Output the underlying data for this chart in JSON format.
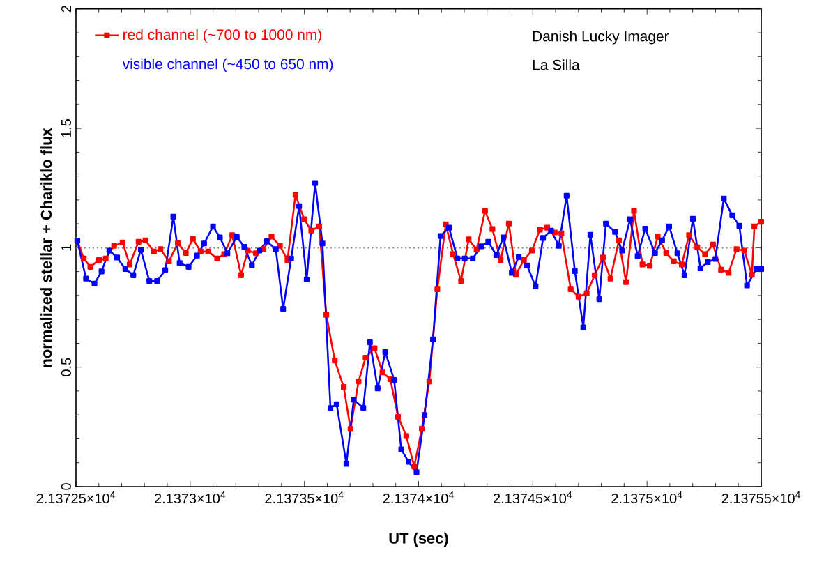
{
  "chart_data": {
    "type": "line",
    "xlabel": "UT (sec)",
    "ylabel": "normalized stellar + Chariklo flux",
    "xlim": [
      21372.5,
      21375.5
    ],
    "ylim": [
      0,
      2
    ],
    "xticks": [
      {
        "value": 21372.5,
        "label": "2.13725×10$^{4}$"
      },
      {
        "value": 21373,
        "label": "2.1373×10$^{4}$"
      },
      {
        "value": 21373.5,
        "label": "2.13735×10$^{4}$"
      },
      {
        "value": 21374,
        "label": "2.1374×10$^{4}$"
      },
      {
        "value": 21374.5,
        "label": "2.13745×10$^{4}$"
      },
      {
        "value": 21375,
        "label": "2.1375×10$^{4}$"
      },
      {
        "value": 21375.5,
        "label": "2.13755×10$^{4}$"
      }
    ],
    "yticks": [
      {
        "value": 0,
        "label": "0"
      },
      {
        "value": 0.5,
        "label": "0.5"
      },
      {
        "value": 1,
        "label": "1"
      },
      {
        "value": 1.5,
        "label": "1.5"
      },
      {
        "value": 2,
        "label": "2"
      }
    ],
    "marker": "square",
    "line_style": "solid",
    "legend": "top left",
    "grid": false,
    "ref_lines": [
      {
        "axis": "y",
        "value": 1,
        "color": "#808080",
        "line_style": "dotted"
      }
    ],
    "annotations": [
      "Danish Lucky Imager",
      "La Silla"
    ],
    "series": [
      {
        "name": "red channel (~700 to 1000 nm)",
        "color": "#ff0000",
        "x": [
          21372.506,
          21372.534,
          21372.563,
          21372.601,
          21372.63,
          21372.667,
          21372.704,
          21372.735,
          21372.774,
          21372.804,
          21372.841,
          21372.87,
          21372.907,
          21372.946,
          21372.981,
          21373.012,
          21373.046,
          21373.079,
          21373.118,
          21373.149,
          21373.184,
          21373.223,
          21373.252,
          21373.288,
          21373.321,
          21373.356,
          21373.393,
          21373.426,
          21373.461,
          21373.499,
          21373.53,
          21373.565,
          21373.596,
          21373.633,
          21373.672,
          21373.702,
          21373.737,
          21373.768,
          21373.807,
          21373.842,
          21373.876,
          21373.91,
          21373.946,
          21373.981,
          21374.014,
          21374.047,
          21374.082,
          21374.119,
          21374.151,
          21374.186,
          21374.219,
          21374.254,
          21374.291,
          21374.323,
          21374.359,
          21374.395,
          21374.426,
          21374.461,
          21374.496,
          21374.531,
          21374.563,
          21374.596,
          21374.625,
          21374.666,
          21374.7,
          21374.736,
          21374.771,
          21374.807,
          21374.84,
          21374.877,
          21374.908,
          21374.943,
          21374.98,
          21375.012,
          21375.047,
          21375.084,
          21375.117,
          21375.152,
          21375.184,
          21375.22,
          21375.254,
          21375.289,
          21375.324,
          21375.357,
          21375.392,
          21375.426,
          21375.459,
          21375.47,
          21375.5
        ],
        "values": [
          1.03,
          0.955,
          0.92,
          0.949,
          0.955,
          1.008,
          1.022,
          0.93,
          1.025,
          1.031,
          0.984,
          0.994,
          0.943,
          1.019,
          0.978,
          1.037,
          0.984,
          0.984,
          0.955,
          0.973,
          1.053,
          0.885,
          0.988,
          0.977,
          0.994,
          1.047,
          1.008,
          0.949,
          1.222,
          1.119,
          1.072,
          1.089,
          0.719,
          0.528,
          0.417,
          0.242,
          0.44,
          0.54,
          0.579,
          0.478,
          0.45,
          0.292,
          0.212,
          0.084,
          0.242,
          0.44,
          0.826,
          1.098,
          0.973,
          0.861,
          1.035,
          0.992,
          1.154,
          1.078,
          0.949,
          1.101,
          0.887,
          0.949,
          0.988,
          1.076,
          1.084,
          1.064,
          1.06,
          0.826,
          0.795,
          0.809,
          0.885,
          0.959,
          0.871,
          1.031,
          0.856,
          1.154,
          0.93,
          0.924,
          1.047,
          0.978,
          0.943,
          0.93,
          1.053,
          1.002,
          0.973,
          1.013,
          0.908,
          0.895,
          0.994,
          0.988,
          0.887,
          1.089,
          1.109
        ]
      },
      {
        "name": "visible channel (~450 to 650 nm)",
        "color": "#0000ff",
        "x": [
          21372.506,
          21372.544,
          21372.581,
          21372.612,
          21372.646,
          21372.68,
          21372.716,
          21372.751,
          21372.784,
          21372.821,
          21372.855,
          21372.891,
          21372.926,
          21372.954,
          21372.993,
          21373.03,
          21373.061,
          21373.1,
          21373.13,
          21373.163,
          21373.204,
          21373.237,
          21373.27,
          21373.303,
          21373.335,
          21373.375,
          21373.407,
          21373.442,
          21373.477,
          21373.51,
          21373.547,
          21373.579,
          21373.614,
          21373.641,
          21373.684,
          21373.716,
          21373.758,
          21373.787,
          21373.821,
          21373.854,
          21373.893,
          21373.924,
          21373.956,
          21373.991,
          21374.026,
          21374.063,
          21374.096,
          21374.133,
          21374.17,
          21374.202,
          21374.237,
          21374.274,
          21374.305,
          21374.34,
          21374.371,
          21374.408,
          21374.438,
          21374.475,
          21374.512,
          21374.545,
          21374.58,
          21374.614,
          21374.648,
          21374.684,
          21374.721,
          21374.752,
          21374.791,
          21374.82,
          21374.86,
          21374.891,
          21374.926,
          21374.959,
          21374.992,
          21375.035,
          21375.066,
          21375.097,
          21375.133,
          21375.164,
          21375.201,
          21375.234,
          21375.266,
          21375.299,
          21375.336,
          21375.373,
          21375.404,
          21375.438,
          21375.478,
          21375.5
        ],
        "values": [
          1.03,
          0.871,
          0.85,
          0.901,
          0.988,
          0.959,
          0.911,
          0.885,
          0.992,
          0.861,
          0.861,
          0.906,
          1.13,
          0.936,
          0.92,
          0.967,
          1.018,
          1.089,
          1.043,
          0.977,
          1.045,
          1.004,
          0.926,
          0.988,
          1.027,
          0.994,
          0.744,
          0.955,
          1.174,
          0.867,
          1.271,
          1.018,
          0.329,
          0.345,
          0.095,
          0.364,
          0.329,
          0.604,
          0.411,
          0.563,
          0.446,
          0.156,
          0.104,
          0.06,
          0.3,
          0.616,
          1.049,
          1.084,
          0.955,
          0.955,
          0.955,
          1.006,
          1.025,
          0.969,
          1.043,
          0.895,
          0.961,
          0.926,
          0.838,
          1.041,
          1.072,
          1.008,
          1.218,
          0.902,
          0.667,
          1.054,
          0.785,
          1.101,
          1.066,
          0.988,
          1.119,
          0.965,
          1.08,
          0.978,
          1.031,
          1.089,
          0.977,
          0.885,
          1.121,
          0.914,
          0.94,
          0.953,
          1.206,
          1.136,
          1.092,
          0.842,
          0.911,
          0.911
        ]
      }
    ]
  }
}
